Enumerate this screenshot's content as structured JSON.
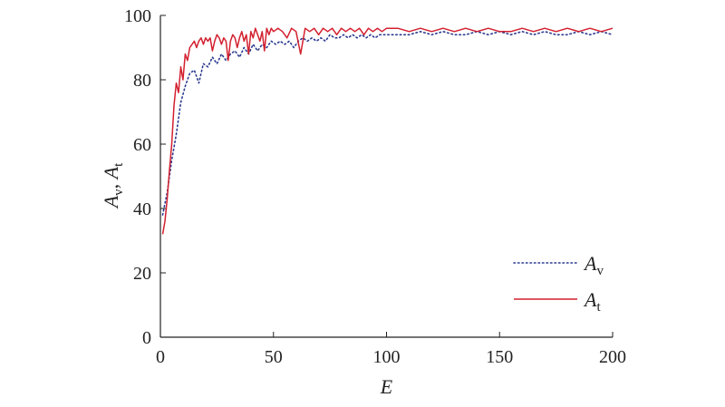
{
  "chart_data": {
    "type": "line",
    "xlabel": "E",
    "ylabel": "Av, At",
    "ylabel_parts": [
      {
        "main": "A",
        "sub": "v"
      },
      {
        "main": "A",
        "sub": "t"
      }
    ],
    "xlim": [
      0,
      200
    ],
    "ylim": [
      0,
      100
    ],
    "x_ticks": [
      "0",
      "50",
      "100",
      "150",
      "200"
    ],
    "y_ticks": [
      "0",
      "20",
      "40",
      "60",
      "80",
      "100"
    ],
    "grid": false,
    "legend_position": "bottom-right",
    "colors": {
      "Av": "#2b3a8f",
      "At": "#d3202f"
    },
    "series": [
      {
        "name": "Av",
        "legend_main": "A",
        "legend_sub": "v",
        "style": "dotted",
        "x": [
          1,
          3,
          5,
          7,
          9,
          11,
          13,
          15,
          17,
          19,
          21,
          23,
          25,
          27,
          29,
          31,
          33,
          35,
          37,
          39,
          41,
          43,
          45,
          47,
          49,
          51,
          53,
          55,
          57,
          59,
          61,
          63,
          65,
          67,
          69,
          71,
          73,
          75,
          77,
          79,
          81,
          83,
          85,
          87,
          89,
          91,
          93,
          95,
          97,
          99,
          101,
          105,
          110,
          115,
          120,
          125,
          130,
          135,
          140,
          145,
          150,
          155,
          160,
          165,
          170,
          175,
          180,
          185,
          190,
          195,
          200
        ],
        "y": [
          38,
          45,
          55,
          63,
          73,
          78,
          82,
          83,
          79,
          85,
          84,
          87,
          85,
          88,
          86,
          88,
          89,
          87,
          90,
          88,
          91,
          89,
          91,
          90,
          92,
          91,
          92,
          91,
          92,
          90,
          92,
          93,
          92,
          93,
          92,
          93,
          92,
          94,
          93,
          93,
          94,
          93,
          94,
          93,
          94,
          93,
          94,
          93,
          94,
          94,
          94,
          94,
          94,
          95,
          94,
          95,
          94,
          94,
          95,
          94,
          95,
          94,
          95,
          94,
          95,
          94,
          94,
          95,
          94,
          95,
          94
        ]
      },
      {
        "name": "At",
        "legend_main": "A",
        "legend_sub": "t",
        "style": "solid",
        "x": [
          1,
          2,
          3,
          4,
          5,
          6,
          7,
          8,
          9,
          10,
          11,
          12,
          13,
          14,
          15,
          16,
          17,
          18,
          19,
          20,
          21,
          22,
          23,
          24,
          25,
          26,
          27,
          28,
          29,
          30,
          31,
          32,
          33,
          34,
          35,
          36,
          37,
          38,
          39,
          40,
          41,
          42,
          43,
          44,
          45,
          46,
          47,
          48,
          49,
          50,
          52,
          54,
          56,
          58,
          60,
          62,
          64,
          66,
          68,
          70,
          72,
          74,
          76,
          78,
          80,
          82,
          84,
          86,
          88,
          90,
          92,
          94,
          96,
          98,
          100,
          105,
          110,
          115,
          120,
          125,
          130,
          135,
          140,
          145,
          150,
          155,
          160,
          165,
          170,
          175,
          180,
          185,
          190,
          195,
          200
        ],
        "y": [
          32,
          36,
          43,
          52,
          60,
          72,
          79,
          76,
          84,
          80,
          88,
          86,
          90,
          91,
          92,
          90,
          92,
          93,
          91,
          93,
          92,
          93,
          89,
          92,
          94,
          93,
          91,
          93,
          92,
          86,
          92,
          94,
          93,
          90,
          93,
          95,
          92,
          94,
          88,
          95,
          93,
          96,
          94,
          92,
          95,
          89,
          96,
          94,
          96,
          95,
          96,
          95,
          93,
          96,
          95,
          88,
          96,
          95,
          96,
          94,
          96,
          95,
          96,
          94,
          96,
          95,
          96,
          95,
          96,
          94,
          96,
          95,
          96,
          95,
          96,
          96,
          95,
          96,
          95,
          96,
          95,
          96,
          95,
          96,
          95,
          95,
          96,
          95,
          96,
          95,
          96,
          95,
          96,
          95,
          96
        ]
      }
    ]
  }
}
